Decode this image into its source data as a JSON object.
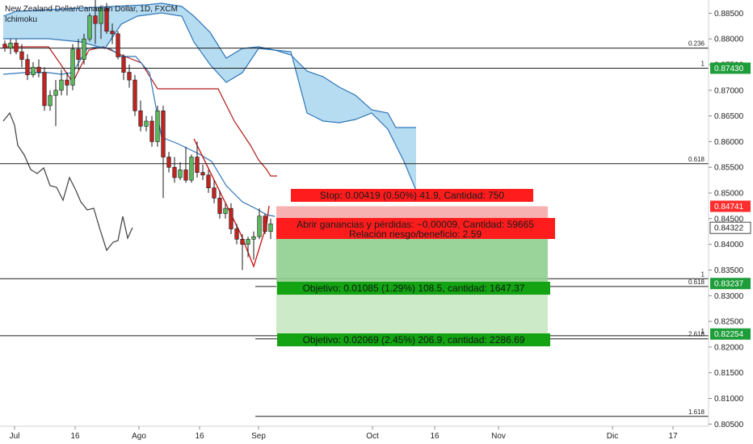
{
  "header": {
    "symbol_title": "New Zealand Dollar/Canadian Dollar, 1D, FXCM",
    "indicator": "Ichimoku"
  },
  "chart_data": {
    "type": "candlestick",
    "ylim": [
      0.8045,
      0.8875
    ],
    "y_ticks": [
      "0.88500",
      "0.88000",
      "0.87500",
      "0.87000",
      "0.86500",
      "0.86000",
      "0.85500",
      "0.85000",
      "0.84500",
      "0.84000",
      "0.83500",
      "0.83000",
      "0.82500",
      "0.82000",
      "0.81500",
      "0.81000",
      "0.80500"
    ],
    "x_ticks": [
      "Jul",
      "16",
      "Ago",
      "16",
      "Sep",
      "Oct",
      "16",
      "Nov",
      "Dic",
      "17"
    ],
    "price_tags": [
      {
        "label": "0.87430",
        "value": 0.8743,
        "color": "#1e9e3a"
      },
      {
        "label": "0.84741",
        "value": 0.84741,
        "color": "#ff2e2e"
      },
      {
        "label": "0.84322",
        "value": 0.84322,
        "color": "#ffffff"
      },
      {
        "label": "0.83237",
        "value": 0.83237,
        "color": "#1e9e3a"
      },
      {
        "label": "0.82254",
        "value": 0.82254,
        "color": "#1e9e3a"
      }
    ],
    "fib_lines": [
      {
        "label": "0.236",
        "value": 0.8782
      },
      {
        "label": "1",
        "value": 0.8743
      },
      {
        "label": "0.618",
        "value": 0.8557
      },
      {
        "label": "1",
        "value": 0.8333
      },
      {
        "label": "0.618",
        "value": 0.8318
      },
      {
        "label": "1",
        "value": 0.8222
      },
      {
        "label": "2.618",
        "value": 0.8216
      },
      {
        "label": "1.618",
        "value": 0.8065
      }
    ],
    "position": {
      "entry": 0.84322,
      "stop": 0.84741,
      "target1": 0.83237,
      "target2": 0.82254,
      "stop_label": "Stop: 0.00419 (0.50%) 41.9, Cantidad: 750",
      "open_label": "Abrir ganancias y pérdidas: −0.00009, Cantidad: 59665",
      "rr_label": "Relación riesgo/beneficio: 2.59",
      "target1_label": "Objetivo: 0.01085 (1.29%) 108.5, cantidad: 1647.37",
      "target2_label": "Objetivo: 0.02069 (2.45%) 206.9, cantidad: 2286.69"
    },
    "candles": [
      [
        0.879,
        0.8797,
        0.8775,
        0.8782
      ],
      [
        0.8782,
        0.88,
        0.877,
        0.8792
      ],
      [
        0.8792,
        0.88,
        0.877,
        0.8775
      ],
      [
        0.8775,
        0.879,
        0.8745,
        0.876
      ],
      [
        0.876,
        0.877,
        0.872,
        0.873
      ],
      [
        0.873,
        0.8755,
        0.8725,
        0.8745
      ],
      [
        0.8745,
        0.876,
        0.8725,
        0.8735
      ],
      [
        0.8735,
        0.8745,
        0.866,
        0.867
      ],
      [
        0.867,
        0.87,
        0.866,
        0.869
      ],
      [
        0.869,
        0.872,
        0.863,
        0.87
      ],
      [
        0.87,
        0.874,
        0.869,
        0.872
      ],
      [
        0.872,
        0.8735,
        0.869,
        0.871
      ],
      [
        0.871,
        0.879,
        0.87,
        0.878
      ],
      [
        0.878,
        0.88,
        0.874,
        0.876
      ],
      [
        0.876,
        0.881,
        0.875,
        0.88
      ],
      [
        0.88,
        0.885,
        0.8795,
        0.8845
      ],
      [
        0.8845,
        0.888,
        0.879,
        0.883
      ],
      [
        0.883,
        0.8865,
        0.88,
        0.886
      ],
      [
        0.886,
        0.887,
        0.881,
        0.8815
      ],
      [
        0.8815,
        0.883,
        0.879,
        0.881
      ],
      [
        0.881,
        0.8815,
        0.876,
        0.8765
      ],
      [
        0.8765,
        0.877,
        0.872,
        0.8735
      ],
      [
        0.8735,
        0.875,
        0.8705,
        0.872
      ],
      [
        0.872,
        0.873,
        0.865,
        0.866
      ],
      [
        0.866,
        0.868,
        0.862,
        0.863
      ],
      [
        0.863,
        0.865,
        0.862,
        0.864
      ],
      [
        0.864,
        0.865,
        0.859,
        0.86
      ],
      [
        0.86,
        0.867,
        0.859,
        0.866
      ],
      [
        0.866,
        0.867,
        0.849,
        0.857
      ],
      [
        0.857,
        0.858,
        0.854,
        0.855
      ],
      [
        0.855,
        0.857,
        0.852,
        0.853
      ],
      [
        0.853,
        0.856,
        0.8525,
        0.8545
      ],
      [
        0.8545,
        0.859,
        0.852,
        0.8525
      ],
      [
        0.8525,
        0.8575,
        0.852,
        0.857
      ],
      [
        0.857,
        0.86,
        0.853,
        0.854
      ],
      [
        0.854,
        0.8555,
        0.8525,
        0.8535
      ],
      [
        0.8535,
        0.8545,
        0.85,
        0.851
      ],
      [
        0.851,
        0.8525,
        0.848,
        0.849
      ],
      [
        0.849,
        0.8505,
        0.845,
        0.846
      ],
      [
        0.846,
        0.848,
        0.845,
        0.847
      ],
      [
        0.847,
        0.848,
        0.842,
        0.843
      ],
      [
        0.843,
        0.844,
        0.84,
        0.841
      ],
      [
        0.841,
        0.842,
        0.835,
        0.84
      ],
      [
        0.84,
        0.8415,
        0.8375,
        0.841
      ],
      [
        0.841,
        0.8425,
        0.837,
        0.8415
      ],
      [
        0.8415,
        0.847,
        0.841,
        0.8455
      ],
      [
        0.8455,
        0.846,
        0.842,
        0.8425
      ],
      [
        0.8425,
        0.845,
        0.841,
        0.844
      ]
    ]
  }
}
